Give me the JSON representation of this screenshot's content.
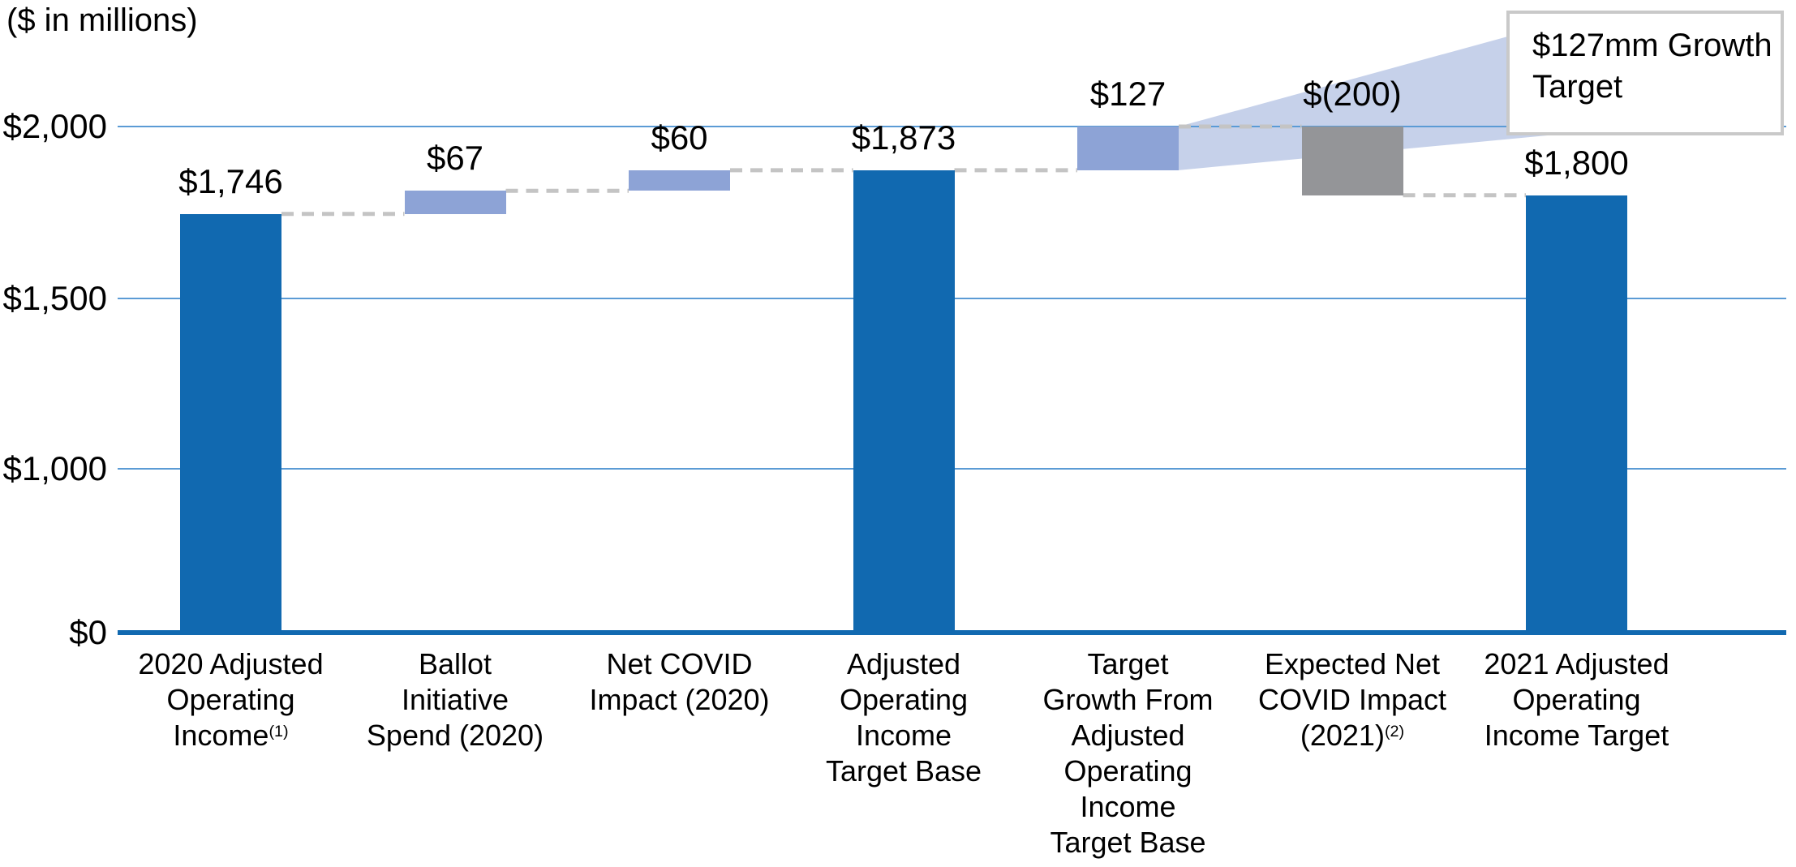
{
  "unit_label": "($ in millions)",
  "callout": {
    "lines": [
      "$127mm Growth",
      "Target"
    ]
  },
  "colors": {
    "dark_blue": "#1169B0",
    "light_blue": "#8DA3D6",
    "gray": "#949598",
    "beam": "rgba(141,163,214,0.5)",
    "gridline": "#5B9BD5",
    "axis": "#1169B0",
    "connector": "#C4C4C4",
    "callout_border": "#C9C9C9",
    "text": "#000000",
    "background": "#FFFFFF"
  },
  "chart_data": {
    "type": "bar",
    "subtype": "waterfall",
    "title": "",
    "unit_label": "($ in millions)",
    "xlabel": "",
    "ylabel": "",
    "ylim": [
      0,
      2000
    ],
    "grid": true,
    "legend_position": "none",
    "axis_note": "y axis is non-linear: ticks $0, $1,000, $1,500, $2,000 are evenly spaced",
    "y_ticks": [
      {
        "label": "$0",
        "value": 0
      },
      {
        "label": "$1,000",
        "value": 1000
      },
      {
        "label": "$1,500",
        "value": 1500
      },
      {
        "label": "$2,000",
        "value": 2000
      }
    ],
    "categories": [
      {
        "label_lines": [
          "2020 Adjusted",
          "Operating",
          "Income"
        ],
        "footnote": "(1)",
        "value": 1746,
        "base": 0,
        "top": 1746,
        "value_label": "$1,746",
        "role": "total",
        "color": "dark_blue"
      },
      {
        "label_lines": [
          "Ballot",
          "Initiative",
          "Spend (2020)"
        ],
        "value": 67,
        "base": 1746,
        "top": 1813,
        "value_label": "$67",
        "role": "increase",
        "color": "light_blue"
      },
      {
        "label_lines": [
          "Net COVID",
          "Impact (2020)"
        ],
        "value": 60,
        "base": 1813,
        "top": 1873,
        "value_label": "$60",
        "role": "increase",
        "color": "light_blue"
      },
      {
        "label_lines": [
          "Adjusted",
          "Operating",
          "Income",
          "Target Base"
        ],
        "value": 1873,
        "base": 0,
        "top": 1873,
        "value_label": "$1,873",
        "role": "total",
        "color": "dark_blue"
      },
      {
        "label_lines": [
          "Target",
          "Growth From",
          "Adjusted",
          "Operating",
          "Income",
          "Target Base"
        ],
        "value": 127,
        "base": 1873,
        "top": 2000,
        "value_label": "$127",
        "role": "increase",
        "color": "light_blue"
      },
      {
        "label_lines": [
          "Expected Net",
          "COVID Impact",
          "(2021)"
        ],
        "footnote": "(2)",
        "value": -200,
        "base": 1800,
        "top": 2000,
        "value_label": "$(200)",
        "role": "decrease",
        "color": "gray"
      },
      {
        "label_lines": [
          "2021 Adjusted",
          "Operating",
          "Income Target"
        ],
        "value": 1800,
        "base": 0,
        "top": 1800,
        "value_label": "$1,800",
        "role": "total",
        "color": "dark_blue"
      }
    ],
    "connector_levels": [
      1746,
      1813,
      1873,
      1873,
      2000,
      1800
    ],
    "annotation": {
      "text": "$127mm Growth Target",
      "points_to_category": "Target Growth From Adjusted Operating Income Target Base"
    }
  }
}
